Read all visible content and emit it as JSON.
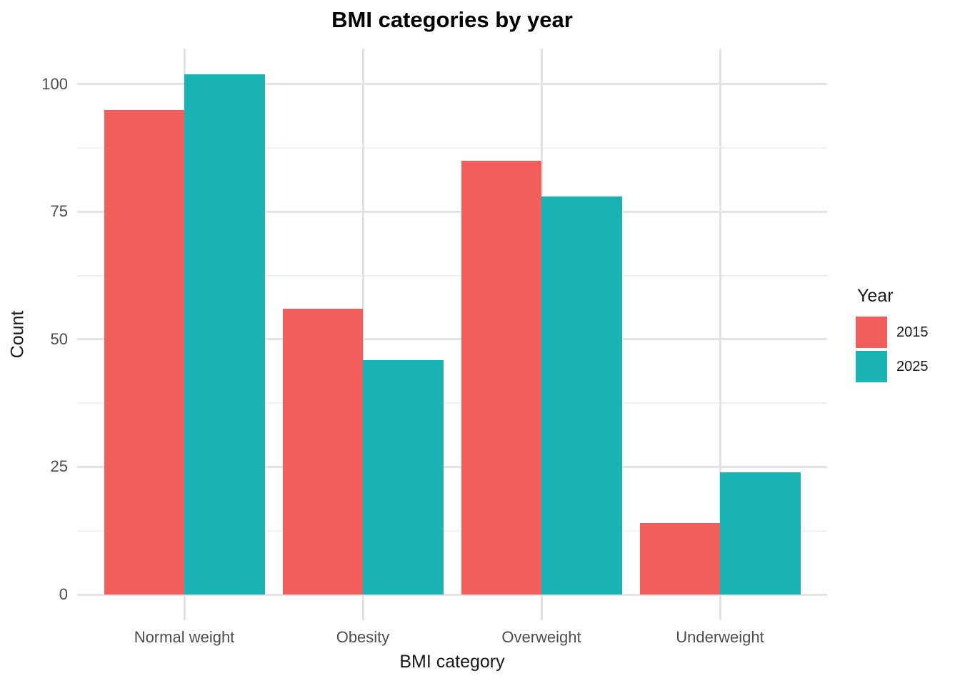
{
  "chart_data": {
    "type": "bar",
    "title": "BMI categories by year",
    "xlabel": "BMI category",
    "ylabel": "Count",
    "categories": [
      "Normal weight",
      "Obesity",
      "Overweight",
      "Underweight"
    ],
    "series": [
      {
        "name": "2015",
        "color": "#F25E5C",
        "values": [
          95,
          56,
          85,
          14
        ]
      },
      {
        "name": "2025",
        "color": "#1AB3B5",
        "values": [
          102,
          46,
          78,
          24
        ]
      }
    ],
    "y_ticks": [
      0,
      25,
      50,
      75,
      100
    ],
    "y_minor_ticks": [
      12.5,
      37.5,
      62.5,
      87.5
    ],
    "ylim": [
      0,
      107
    ],
    "grid": true,
    "legend": {
      "title": "Year",
      "position": "right"
    },
    "colors": {
      "grid_major": "#E3E3E3",
      "grid_minor": "#F0F0F0",
      "tick_text": "#4D4D4D",
      "title_text": "#000000",
      "background": "#FFFFFF"
    }
  }
}
